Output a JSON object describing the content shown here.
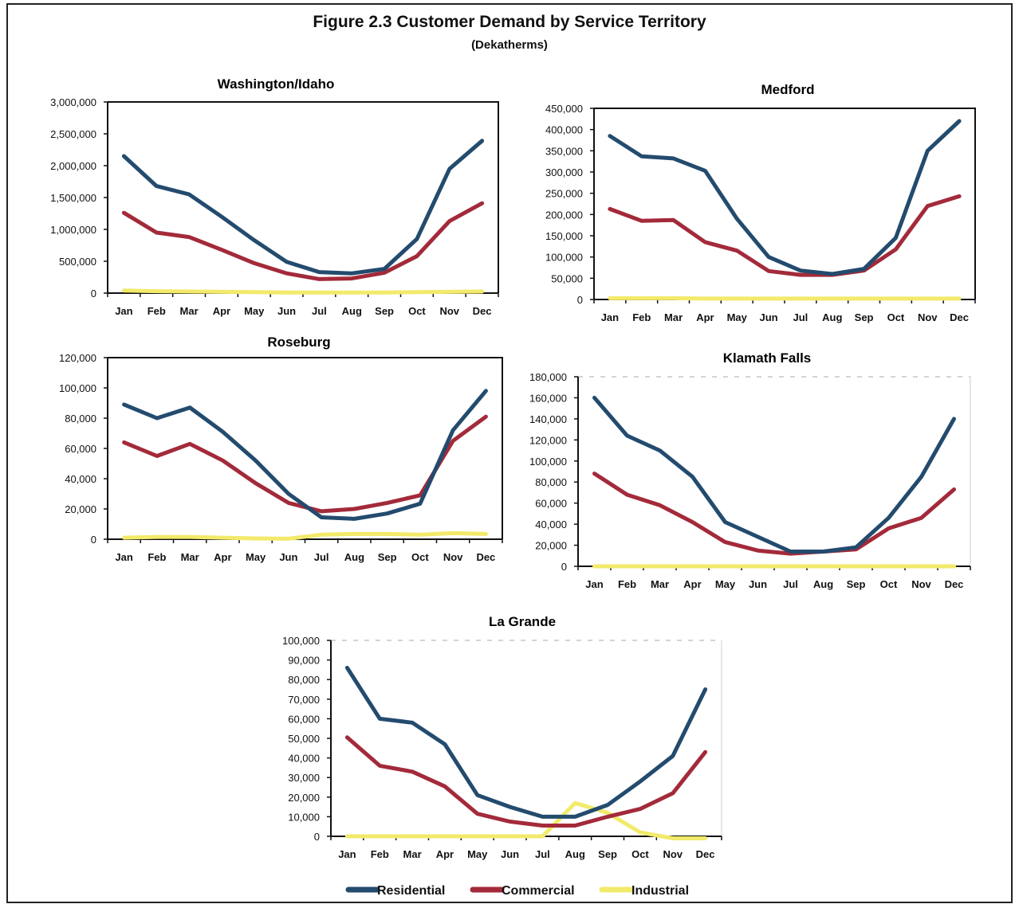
{
  "figure": {
    "title": "Figure 2.3 Customer Demand by Service Territory",
    "subtitle": "(Dekatherms)"
  },
  "colors": {
    "residential": "#234b6e",
    "commercial": "#a32a3a",
    "industrial": "#f2ea6a"
  },
  "legend": [
    {
      "key": "residential",
      "label": "Residential"
    },
    {
      "key": "commercial",
      "label": "Commercial"
    },
    {
      "key": "industrial",
      "label": "Industrial"
    }
  ],
  "chart_data": [
    {
      "type": "line",
      "title": "Washington/Idaho",
      "categories": [
        "Jan",
        "Feb",
        "Mar",
        "Apr",
        "May",
        "Jun",
        "Jul",
        "Aug",
        "Sep",
        "Oct",
        "Nov",
        "Dec"
      ],
      "ylim": [
        0,
        3000000
      ],
      "yticks": [
        "3,000,000",
        "2,500,000",
        "2,000,000",
        "1,500,000",
        "1,000,000",
        "500,000",
        "0"
      ],
      "series": [
        {
          "name": "Residential",
          "values": [
            2150000,
            1680000,
            1550000,
            1200000,
            830000,
            490000,
            330000,
            310000,
            380000,
            850000,
            1950000,
            2390000
          ]
        },
        {
          "name": "Commercial",
          "values": [
            1260000,
            950000,
            880000,
            680000,
            470000,
            310000,
            220000,
            230000,
            320000,
            580000,
            1130000,
            1410000
          ]
        },
        {
          "name": "Industrial",
          "values": [
            40000,
            30000,
            25000,
            20000,
            15000,
            10000,
            10000,
            10000,
            10000,
            15000,
            20000,
            25000
          ]
        }
      ]
    },
    {
      "type": "line",
      "title": "Medford",
      "categories": [
        "Jan",
        "Feb",
        "Mar",
        "Apr",
        "May",
        "Jun",
        "Jul",
        "Aug",
        "Sep",
        "Oct",
        "Nov",
        "Dec"
      ],
      "ylim": [
        0,
        450000
      ],
      "yticks": [
        "450,000",
        "400,000",
        "350,000",
        "300,000",
        "250,000",
        "200,000",
        "150,000",
        "100,000",
        "50,000",
        "0"
      ],
      "series": [
        {
          "name": "Residential",
          "values": [
            385000,
            337000,
            332000,
            303000,
            190000,
            100000,
            68000,
            60000,
            72000,
            145000,
            350000,
            420000
          ]
        },
        {
          "name": "Commercial",
          "values": [
            213000,
            185000,
            187000,
            135000,
            115000,
            67000,
            58000,
            58000,
            68000,
            118000,
            220000,
            243000
          ]
        },
        {
          "name": "Industrial",
          "values": [
            3000,
            3000,
            3000,
            2000,
            2000,
            2000,
            2000,
            2000,
            2000,
            2000,
            2000,
            2000
          ]
        }
      ]
    },
    {
      "type": "line",
      "title": "Roseburg",
      "categories": [
        "Jan",
        "Feb",
        "Mar",
        "Apr",
        "May",
        "Jun",
        "Jul",
        "Aug",
        "Sep",
        "Oct",
        "Nov",
        "Dec"
      ],
      "ylim": [
        0,
        120000
      ],
      "yticks": [
        "120,000",
        "100,000",
        "80,000",
        "60,000",
        "40,000",
        "20,000",
        "0"
      ],
      "series": [
        {
          "name": "Residential",
          "values": [
            89000,
            80000,
            87000,
            71000,
            52000,
            30000,
            14500,
            13500,
            17000,
            23500,
            72000,
            98000
          ]
        },
        {
          "name": "Commercial",
          "values": [
            64000,
            55000,
            63000,
            52000,
            37000,
            24000,
            18500,
            20000,
            24000,
            29000,
            65000,
            81000
          ]
        },
        {
          "name": "Industrial",
          "values": [
            1000,
            1500,
            1500,
            1000,
            500,
            300,
            3000,
            3500,
            3500,
            3000,
            4000,
            3500
          ]
        }
      ]
    },
    {
      "type": "line",
      "title": "Klamath Falls",
      "categories": [
        "Jan",
        "Feb",
        "Mar",
        "Apr",
        "May",
        "Jun",
        "Jul",
        "Aug",
        "Sep",
        "Oct",
        "Nov",
        "Dec"
      ],
      "ylim": [
        0,
        180000
      ],
      "yticks": [
        "180,000",
        "160,000",
        "140,000",
        "120,000",
        "100,000",
        "80,000",
        "60,000",
        "40,000",
        "20,000",
        "0"
      ],
      "series": [
        {
          "name": "Residential",
          "values": [
            160000,
            124000,
            110000,
            85000,
            42000,
            28000,
            14000,
            14000,
            18000,
            46000,
            85000,
            140000
          ]
        },
        {
          "name": "Commercial",
          "values": [
            88000,
            68000,
            58000,
            42000,
            23000,
            15000,
            12000,
            14000,
            16000,
            36000,
            46000,
            73000
          ]
        },
        {
          "name": "Industrial",
          "values": [
            0,
            0,
            0,
            0,
            0,
            0,
            0,
            0,
            0,
            0,
            0,
            0
          ]
        }
      ]
    },
    {
      "type": "line",
      "title": "La Grande",
      "categories": [
        "Jan",
        "Feb",
        "Mar",
        "Apr",
        "May",
        "Jun",
        "Jul",
        "Aug",
        "Sep",
        "Oct",
        "Nov",
        "Dec"
      ],
      "ylim": [
        0,
        100000
      ],
      "yticks": [
        "100,000",
        "90,000",
        "80,000",
        "70,000",
        "60,000",
        "50,000",
        "40,000",
        "30,000",
        "20,000",
        "10,000",
        "0"
      ],
      "series": [
        {
          "name": "Residential",
          "values": [
            86000,
            60000,
            58000,
            47000,
            21000,
            15000,
            10000,
            10000,
            16000,
            28000,
            41000,
            75000
          ]
        },
        {
          "name": "Commercial",
          "values": [
            50500,
            36000,
            33000,
            25500,
            11500,
            7500,
            5500,
            5500,
            10000,
            14000,
            22000,
            43000
          ]
        },
        {
          "name": "Industrial",
          "values": [
            0,
            0,
            0,
            0,
            0,
            0,
            0,
            17000,
            12000,
            2000,
            -1000,
            -1000
          ]
        }
      ]
    }
  ]
}
